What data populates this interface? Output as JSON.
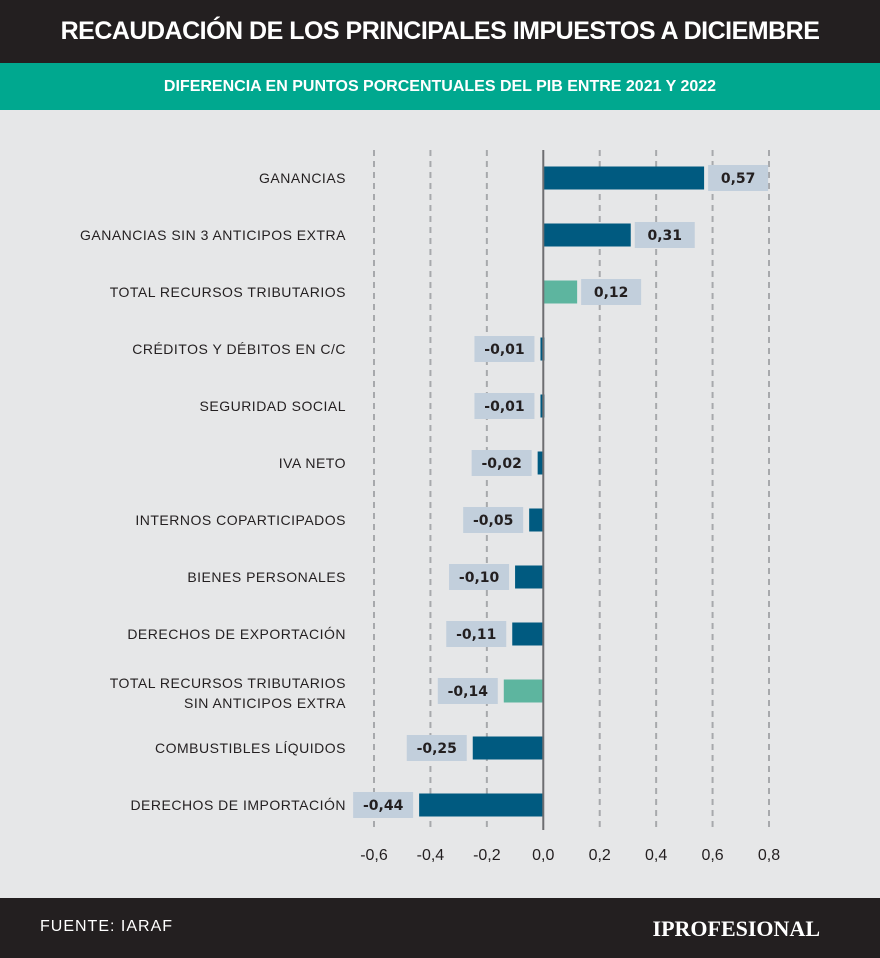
{
  "header": {
    "title": "RECAUDACIÓN DE LOS PRINCIPALES IMPUESTOS A DICIEMBRE",
    "subtitle": "DIFERENCIA EN PUNTOS PORCENTUALES DEL PIB ENTRE 2021 Y 2022"
  },
  "footer": {
    "source": "FUENTE:  IARAF",
    "brand": "IPROFESIONAL"
  },
  "colors": {
    "bar": "#005a80",
    "highlight_bar": "#5db59f",
    "label_bg": "#c2cfdc",
    "grid": "#a7a9ac",
    "axis": "#6d6e71"
  },
  "chart_data": {
    "type": "bar",
    "orientation": "horizontal",
    "title": "DIFERENCIA EN PUNTOS PORCENTUALES DEL PIB ENTRE 2021 Y 2022",
    "xlim": [
      -0.6,
      0.8
    ],
    "xticks": [
      "-0,6",
      "-0,4",
      "-0,2",
      "0,0",
      "0,2",
      "0,4",
      "0,6",
      "0,8"
    ],
    "grid": true,
    "categories": [
      [
        "GANANCIAS"
      ],
      [
        "GANANCIAS SIN 3 ANTICIPOS EXTRA"
      ],
      [
        "TOTAL RECURSOS TRIBUTARIOS"
      ],
      [
        "CRÉDITOS Y DÉBITOS EN C/C"
      ],
      [
        "SEGURIDAD SOCIAL"
      ],
      [
        "IVA NETO"
      ],
      [
        "INTERNOS COPARTICIPADOS"
      ],
      [
        "BIENES PERSONALES"
      ],
      [
        "DERECHOS DE EXPORTACIÓN"
      ],
      [
        "TOTAL RECURSOS TRIBUTARIOS",
        "SIN ANTICIPOS EXTRA"
      ],
      [
        "COMBUSTIBLES LÍQUIDOS"
      ],
      [
        "DERECHOS DE IMPORTACIÓN"
      ]
    ],
    "values": [
      0.57,
      0.31,
      0.12,
      -0.01,
      -0.01,
      -0.02,
      -0.05,
      -0.1,
      -0.11,
      -0.14,
      -0.25,
      -0.44
    ],
    "labels": [
      "0,57",
      "0,31",
      "0,12",
      "-0,01",
      "-0,01",
      "-0,02",
      "-0,05",
      "-0,10",
      "-0,11",
      "-0,14",
      "-0,25",
      "-0,44"
    ],
    "highlighted": [
      2,
      9
    ]
  }
}
